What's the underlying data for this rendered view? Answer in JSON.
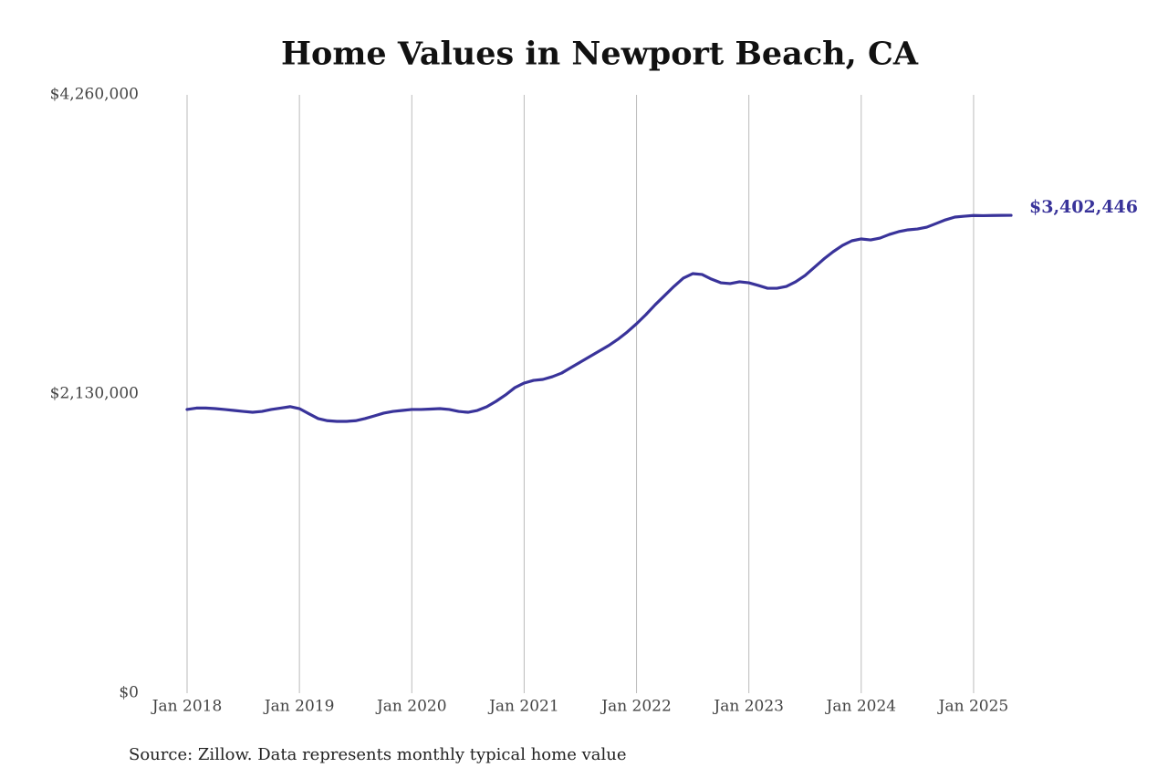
{
  "chart_data": {
    "type": "line",
    "title": "Home Values in Newport Beach, CA",
    "source": "Source: Zillow. Data represents monthly typical home value",
    "x": [
      "2018-01",
      "2018-02",
      "2018-03",
      "2018-04",
      "2018-05",
      "2018-06",
      "2018-07",
      "2018-08",
      "2018-09",
      "2018-10",
      "2018-11",
      "2018-12",
      "2019-01",
      "2019-02",
      "2019-03",
      "2019-04",
      "2019-05",
      "2019-06",
      "2019-07",
      "2019-08",
      "2019-09",
      "2019-10",
      "2019-11",
      "2019-12",
      "2020-01",
      "2020-02",
      "2020-03",
      "2020-04",
      "2020-05",
      "2020-06",
      "2020-07",
      "2020-08",
      "2020-09",
      "2020-10",
      "2020-11",
      "2020-12",
      "2021-01",
      "2021-02",
      "2021-03",
      "2021-04",
      "2021-05",
      "2021-06",
      "2021-07",
      "2021-08",
      "2021-09",
      "2021-10",
      "2021-11",
      "2021-12",
      "2022-01",
      "2022-02",
      "2022-03",
      "2022-04",
      "2022-05",
      "2022-06",
      "2022-07",
      "2022-08",
      "2022-09",
      "2022-10",
      "2022-11",
      "2022-12",
      "2023-01",
      "2023-02",
      "2023-03",
      "2023-04",
      "2023-05",
      "2023-06",
      "2023-07",
      "2023-08",
      "2023-09",
      "2023-10",
      "2023-11",
      "2023-12",
      "2024-01",
      "2024-02",
      "2024-03",
      "2024-04",
      "2024-05",
      "2024-06",
      "2024-07",
      "2024-08",
      "2024-09",
      "2024-10",
      "2024-11",
      "2024-12",
      "2025-01",
      "2025-02",
      "2025-03",
      "2025-04",
      "2025-05"
    ],
    "series": [
      {
        "color": "#39339a",
        "values": [
          2020000,
          2030000,
          2030000,
          2026000,
          2020000,
          2013000,
          2006000,
          2000000,
          2006000,
          2020000,
          2030000,
          2040000,
          2026000,
          1990000,
          1955000,
          1940000,
          1935000,
          1935000,
          1940000,
          1955000,
          1974000,
          1994000,
          2006000,
          2013000,
          2020000,
          2020000,
          2023000,
          2026000,
          2020000,
          2006000,
          2000000,
          2013000,
          2039000,
          2078000,
          2123000,
          2175000,
          2208000,
          2227000,
          2234000,
          2253000,
          2279000,
          2318000,
          2357000,
          2396000,
          2435000,
          2474000,
          2519000,
          2571000,
          2630000,
          2695000,
          2766000,
          2831000,
          2896000,
          2955000,
          2987000,
          2981000,
          2948000,
          2922000,
          2916000,
          2929000,
          2922000,
          2903000,
          2883000,
          2883000,
          2896000,
          2929000,
          2974000,
          3032000,
          3091000,
          3143000,
          3188000,
          3221000,
          3234000,
          3227000,
          3240000,
          3266000,
          3286000,
          3299000,
          3305000,
          3318000,
          3344000,
          3370000,
          3390000,
          3396000,
          3401000,
          3400000,
          3401000,
          3402000,
          3402446
        ],
        "value_labels": [
          null,
          null,
          null,
          null,
          null,
          null,
          null,
          null,
          null,
          null,
          null,
          null,
          null,
          null,
          null,
          null,
          null,
          null,
          null,
          null,
          null,
          null,
          null,
          null,
          null,
          null,
          null,
          null,
          null,
          null,
          null,
          null,
          null,
          null,
          null,
          null,
          null,
          null,
          null,
          null,
          null,
          null,
          null,
          null,
          null,
          null,
          null,
          null,
          null,
          null,
          null,
          null,
          null,
          null,
          null,
          null,
          null,
          null,
          null,
          null,
          null,
          null,
          null,
          null,
          null,
          null,
          null,
          null,
          null,
          null,
          null,
          null,
          null,
          null,
          null,
          null,
          null,
          null,
          null,
          null,
          null,
          null,
          null,
          null,
          null,
          null,
          null,
          null,
          "$3,402,446"
        ]
      }
    ],
    "xlim": [
      "2018-01",
      "2025-05"
    ],
    "xticks": [
      {
        "value": "2018-01",
        "label": "Jan 2018"
      },
      {
        "value": "2019-01",
        "label": "Jan 2019"
      },
      {
        "value": "2020-01",
        "label": "Jan 2020"
      },
      {
        "value": "2021-01",
        "label": "Jan 2021"
      },
      {
        "value": "2022-01",
        "label": "Jan 2022"
      },
      {
        "value": "2023-01",
        "label": "Jan 2023"
      },
      {
        "value": "2024-01",
        "label": "Jan 2024"
      },
      {
        "value": "2025-01",
        "label": "Jan 2025"
      }
    ],
    "ylim": [
      0,
      4260000
    ],
    "yticks": [
      {
        "value": 0,
        "label": "$0"
      },
      {
        "value": 2130000,
        "label": "$2,130,000"
      },
      {
        "value": 4260000,
        "label": "$4,260,000"
      }
    ],
    "grid": "x"
  }
}
